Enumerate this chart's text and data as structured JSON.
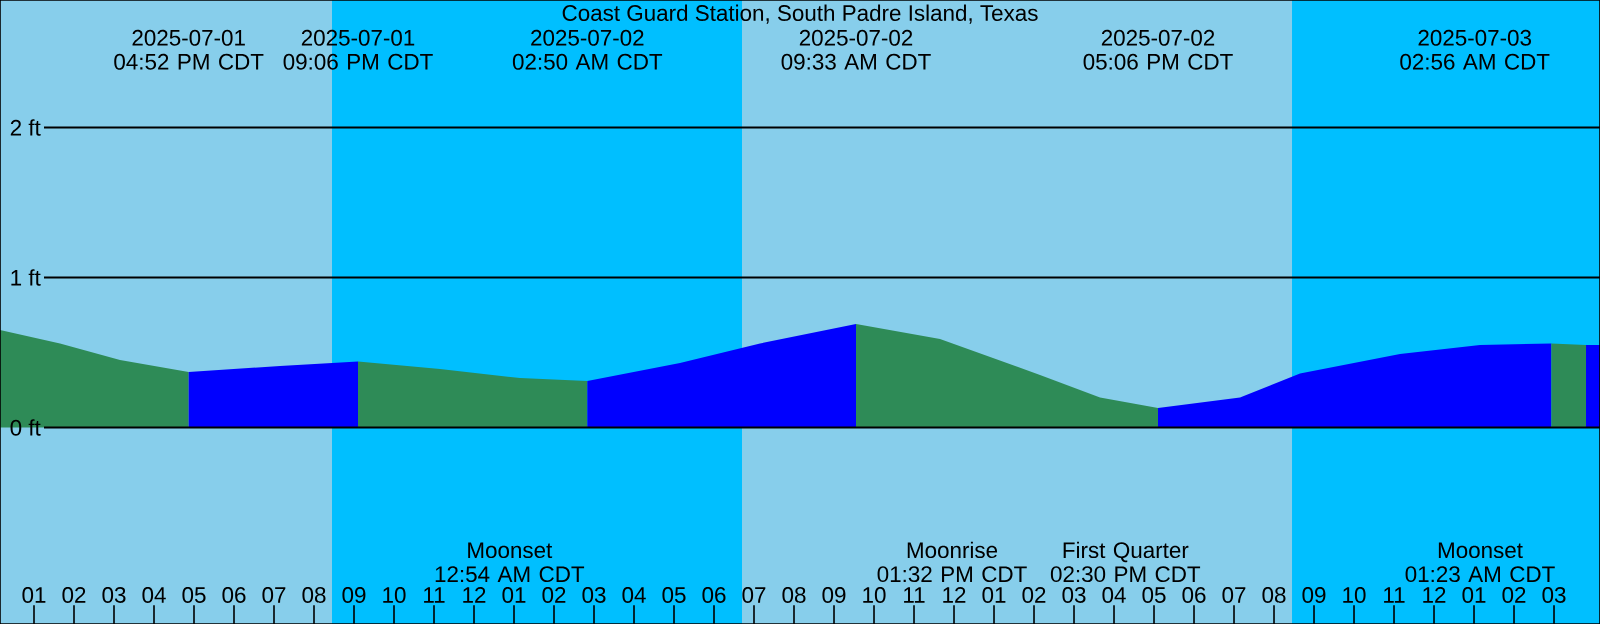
{
  "chart_data": {
    "type": "area",
    "title": "Coast Guard Station, South Padre Island, Texas",
    "xlim": [
      "2025-07-01T12:09",
      "2025-07-03T04:09"
    ],
    "ylim": [
      -1.31,
      2.85
    ],
    "yticks": [
      {
        "value": 0,
        "label": "0 ft"
      },
      {
        "value": 1,
        "label": "1 ft"
      },
      {
        "value": 2,
        "label": "2 ft"
      }
    ],
    "grid": "y",
    "xticks": [
      {
        "value": "2025-07-01T13:00",
        "label": "01"
      },
      {
        "value": "2025-07-01T14:00",
        "label": "02"
      },
      {
        "value": "2025-07-01T15:00",
        "label": "03"
      },
      {
        "value": "2025-07-01T16:00",
        "label": "04"
      },
      {
        "value": "2025-07-01T17:00",
        "label": "05"
      },
      {
        "value": "2025-07-01T18:00",
        "label": "06"
      },
      {
        "value": "2025-07-01T19:00",
        "label": "07"
      },
      {
        "value": "2025-07-01T20:00",
        "label": "08"
      },
      {
        "value": "2025-07-01T21:00",
        "label": "09"
      },
      {
        "value": "2025-07-01T22:00",
        "label": "10"
      },
      {
        "value": "2025-07-01T23:00",
        "label": "11"
      },
      {
        "value": "2025-07-02T00:00",
        "label": "12"
      },
      {
        "value": "2025-07-02T01:00",
        "label": "01"
      },
      {
        "value": "2025-07-02T02:00",
        "label": "02"
      },
      {
        "value": "2025-07-02T03:00",
        "label": "03"
      },
      {
        "value": "2025-07-02T04:00",
        "label": "04"
      },
      {
        "value": "2025-07-02T05:00",
        "label": "05"
      },
      {
        "value": "2025-07-02T06:00",
        "label": "06"
      },
      {
        "value": "2025-07-02T07:00",
        "label": "07"
      },
      {
        "value": "2025-07-02T08:00",
        "label": "08"
      },
      {
        "value": "2025-07-02T09:00",
        "label": "09"
      },
      {
        "value": "2025-07-02T10:00",
        "label": "10"
      },
      {
        "value": "2025-07-02T11:00",
        "label": "11"
      },
      {
        "value": "2025-07-02T12:00",
        "label": "12"
      },
      {
        "value": "2025-07-02T13:00",
        "label": "01"
      },
      {
        "value": "2025-07-02T14:00",
        "label": "02"
      },
      {
        "value": "2025-07-02T15:00",
        "label": "03"
      },
      {
        "value": "2025-07-02T16:00",
        "label": "04"
      },
      {
        "value": "2025-07-02T17:00",
        "label": "05"
      },
      {
        "value": "2025-07-02T18:00",
        "label": "06"
      },
      {
        "value": "2025-07-02T19:00",
        "label": "07"
      },
      {
        "value": "2025-07-02T20:00",
        "label": "08"
      },
      {
        "value": "2025-07-02T21:00",
        "label": "09"
      },
      {
        "value": "2025-07-02T22:00",
        "label": "10"
      },
      {
        "value": "2025-07-02T23:00",
        "label": "11"
      },
      {
        "value": "2025-07-03T00:00",
        "label": "12"
      },
      {
        "value": "2025-07-03T01:00",
        "label": "01"
      },
      {
        "value": "2025-07-03T02:00",
        "label": "02"
      },
      {
        "value": "2025-07-03T03:00",
        "label": "03"
      }
    ],
    "bands": [
      {
        "axis": "x",
        "from": "2025-07-01T12:09",
        "to": "2025-07-01T20:27",
        "color": "#87ceeb"
      },
      {
        "axis": "x",
        "from": "2025-07-01T20:27",
        "to": "2025-07-02T06:42",
        "color": "#00bfff"
      },
      {
        "axis": "x",
        "from": "2025-07-02T06:42",
        "to": "2025-07-02T20:27",
        "color": "#87ceeb"
      },
      {
        "axis": "x",
        "from": "2025-07-02T20:27",
        "to": "2025-07-03T04:09",
        "color": "#00bfff"
      }
    ],
    "series": [
      {
        "color": "#2e8b57",
        "x": [
          "2025-07-01T12:09",
          "2025-07-01T13:39",
          "2025-07-01T15:09",
          "2025-07-01T16:52"
        ],
        "values": [
          0.65,
          0.56,
          0.45,
          0.37
        ]
      },
      {
        "color": "#0000ff",
        "x": [
          "2025-07-01T16:52",
          "2025-07-01T19:09",
          "2025-07-01T21:06"
        ],
        "values": [
          0.37,
          0.41,
          0.44
        ]
      },
      {
        "color": "#2e8b57",
        "x": [
          "2025-07-01T21:06",
          "2025-07-01T23:09",
          "2025-07-02T01:09",
          "2025-07-02T02:50"
        ],
        "values": [
          0.44,
          0.39,
          0.33,
          0.31
        ]
      },
      {
        "color": "#0000ff",
        "x": [
          "2025-07-02T02:50",
          "2025-07-02T05:09",
          "2025-07-02T07:09",
          "2025-07-02T09:33"
        ],
        "values": [
          0.31,
          0.43,
          0.56,
          0.69
        ]
      },
      {
        "color": "#2e8b57",
        "x": [
          "2025-07-02T09:33",
          "2025-07-02T11:39",
          "2025-07-02T14:09",
          "2025-07-02T15:39",
          "2025-07-02T17:06"
        ],
        "values": [
          0.69,
          0.59,
          0.35,
          0.2,
          0.13
        ]
      },
      {
        "color": "#0000ff",
        "x": [
          "2025-07-02T17:06",
          "2025-07-02T19:09",
          "2025-07-02T20:39",
          "2025-07-02T23:09",
          "2025-07-03T01:09",
          "2025-07-03T02:56"
        ],
        "values": [
          0.13,
          0.2,
          0.36,
          0.49,
          0.55,
          0.56
        ]
      },
      {
        "color": "#2e8b57",
        "x": [
          "2025-07-03T02:56",
          "2025-07-03T03:48"
        ],
        "values": [
          0.56,
          0.55
        ]
      },
      {
        "color": "#0000ff",
        "x": [
          "2025-07-03T03:48",
          "2025-07-03T04:09"
        ],
        "values": [
          0.55,
          0.55
        ]
      }
    ],
    "x2lim": [
      "2025-07-01T12:09",
      "2025-07-03T04:09"
    ],
    "x2ticks": [
      {
        "value": "2025-07-01T16:52",
        "label": "2025-07-01 04:52 PM CDT"
      },
      {
        "value": "2025-07-01T21:06",
        "label": "2025-07-01 09:06 PM CDT"
      },
      {
        "value": "2025-07-02T02:50",
        "label": "2025-07-02 02:50 AM CDT"
      },
      {
        "value": "2025-07-02T09:33",
        "label": "2025-07-02 09:33 AM CDT"
      },
      {
        "value": "2025-07-02T17:06",
        "label": "2025-07-02 05:06 PM CDT"
      }
    ],
    "annotations": [
      "2025-07-03 02:56 AM CDT",
      "Moonset 12:54 AM CDT",
      "Moonrise 01:32 PM CDT",
      "First Quarter 02:30 PM CDT",
      "Moonset 01:23 AM CDT"
    ]
  }
}
